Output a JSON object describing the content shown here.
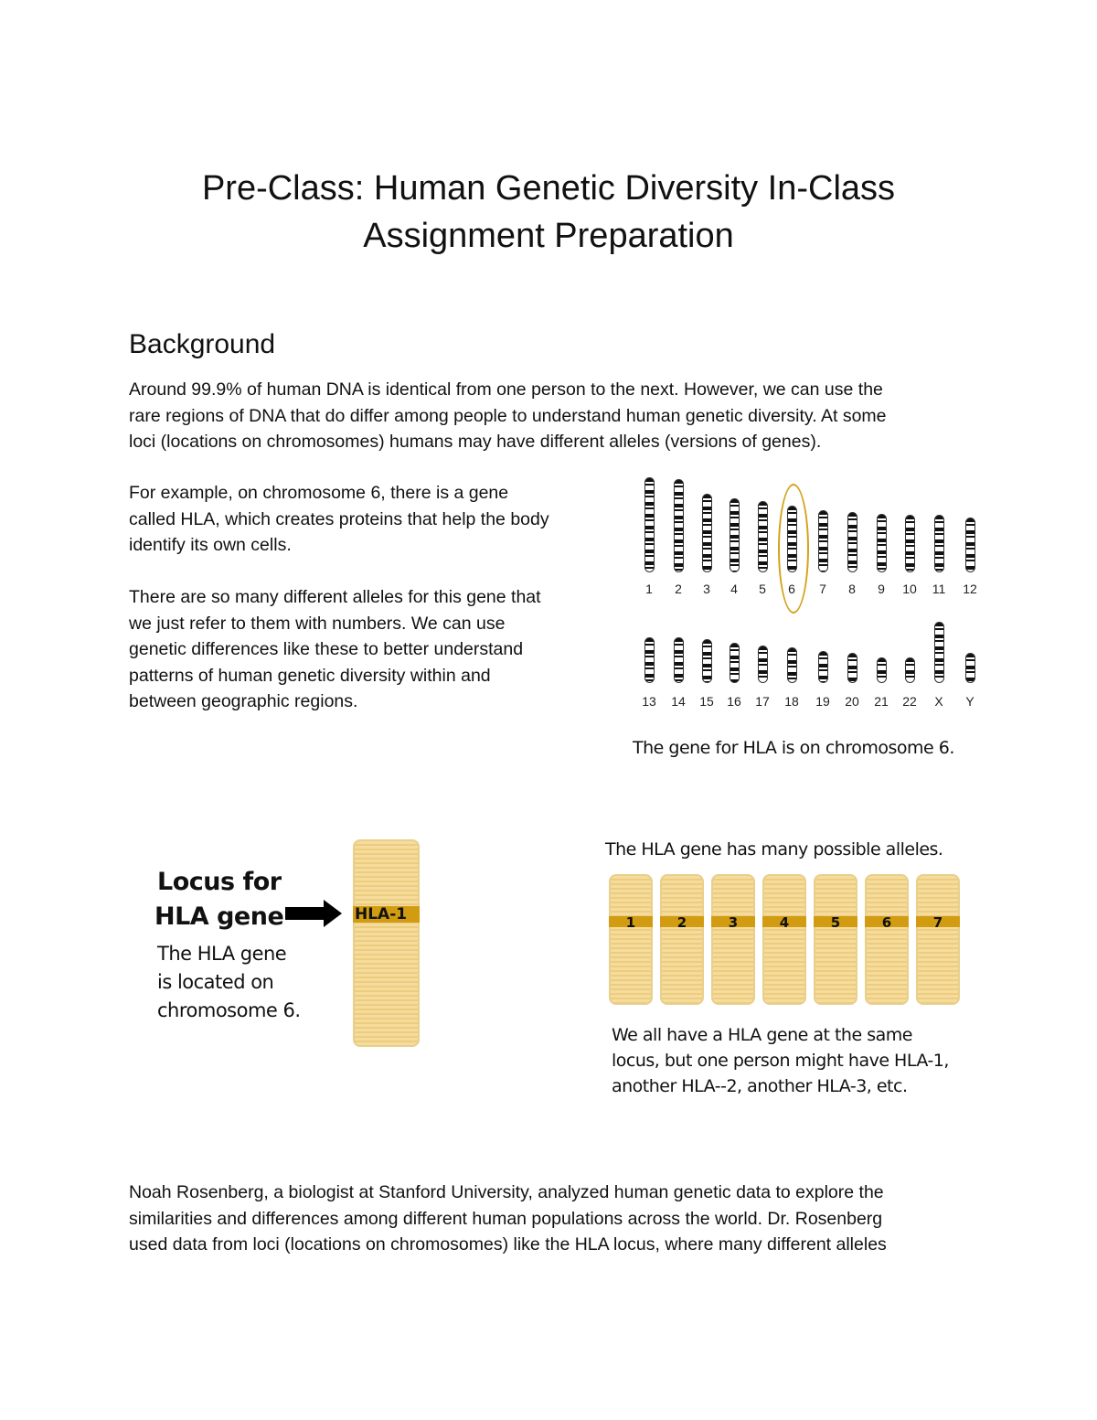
{
  "title_lines": [
    "Pre-Class: Human Genetic Diversity In-Class",
    "Assignment Preparation"
  ],
  "background": {
    "heading": "Background",
    "p1_lines": [
      "Around 99.9% of human DNA is identical from one person to the next. However, we can use the",
      "rare regions of DNA that do differ among people to understand human genetic diversity. At some",
      "loci (locations on chromosomes) humans may have different alleles (versions of genes)."
    ],
    "p2_lines": [
      "For example, on chromosome 6, there is a gene",
      "called HLA, which creates proteins that help the body",
      "identify its own cells."
    ],
    "p3_lines": [
      "There are so many different alleles for this gene that",
      "we just refer to them with numbers. We can use",
      "genetic differences like these to better understand",
      "patterns of human genetic diversity within and",
      "between geographic regions."
    ]
  },
  "karyotype": {
    "row1": [
      "1",
      "2",
      "3",
      "4",
      "5",
      "6",
      "7",
      "8",
      "9",
      "10",
      "11",
      "12"
    ],
    "row2": [
      "13",
      "14",
      "15",
      "16",
      "17",
      "18",
      "19",
      "20",
      "21",
      "22",
      "X",
      "Y"
    ],
    "highlighted": "6",
    "highlight_color": "#d4a21a",
    "caption": "The gene for HLA is on chromosome 6."
  },
  "locus_figure": {
    "heading_lines": [
      "Locus for",
      "HLA gene"
    ],
    "band_label": "HLA-1",
    "text_lines": [
      "The HLA gene",
      "is located on",
      "chromosome 6."
    ],
    "band_color": "#d19c12"
  },
  "alleles_figure": {
    "title": "The HLA gene has many possible alleles.",
    "alleles": [
      "1",
      "2",
      "3",
      "4",
      "5",
      "6",
      "7"
    ],
    "text_lines": [
      "We all have a HLA gene at the same",
      "locus, but one person might have HLA-1,",
      "another HLA--2, another HLA-3, etc."
    ]
  },
  "closing_lines": [
    "Noah Rosenberg, a biologist at Stanford University, analyzed human genetic data to explore the",
    "similarities and differences among different human populations across the world. Dr. Rosenberg",
    "used data from loci (locations on chromosomes) like the HLA locus, where many different alleles"
  ]
}
